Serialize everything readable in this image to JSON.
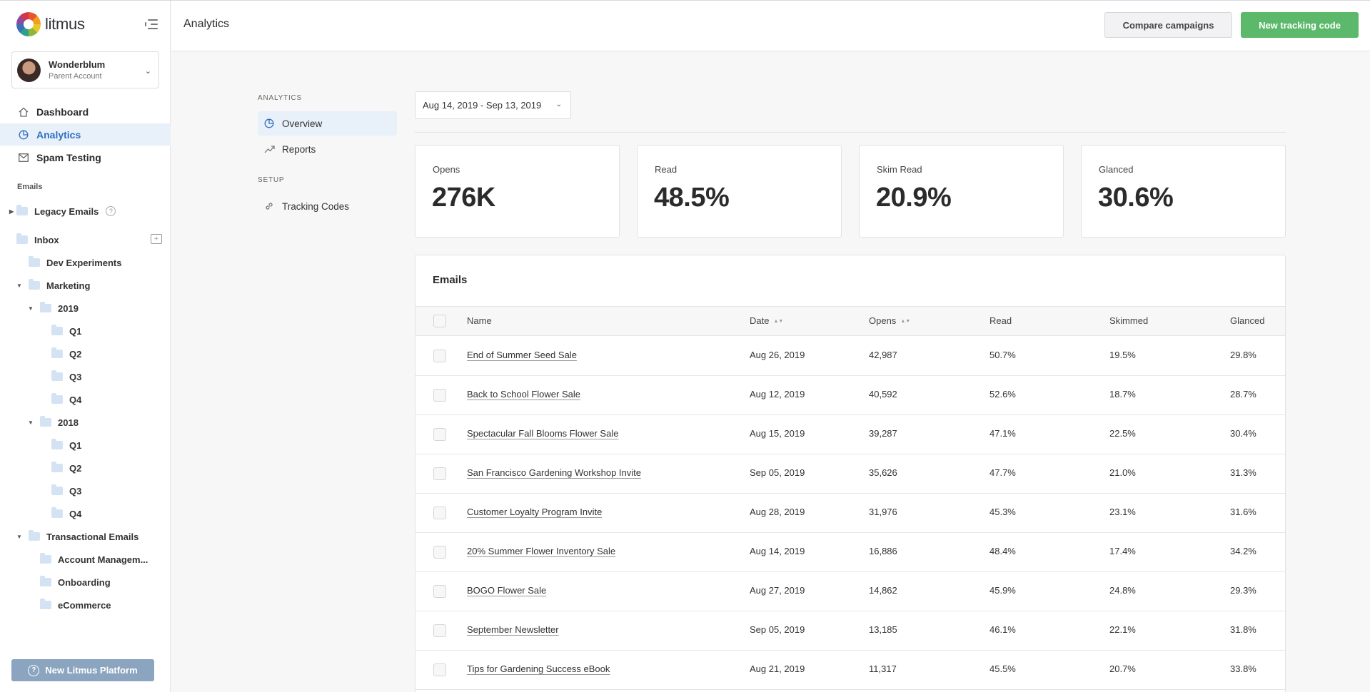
{
  "app": {
    "logo_text": "litmus",
    "page_title": "Analytics"
  },
  "account": {
    "name": "Wonderblum",
    "subtitle": "Parent Account"
  },
  "nav": [
    {
      "label": "Dashboard",
      "icon": "home-icon"
    },
    {
      "label": "Analytics",
      "icon": "pie-chart-icon",
      "active": true
    },
    {
      "label": "Spam Testing",
      "icon": "mail-icon"
    }
  ],
  "emails_label": "Emails",
  "tree": {
    "legacy": "Legacy Emails",
    "inbox": "Inbox",
    "dev": "Dev Experiments",
    "marketing": "Marketing",
    "y2019": "2019",
    "y2018": "2018",
    "q1": "Q1",
    "q2": "Q2",
    "q3": "Q3",
    "q4": "Q4",
    "transactional": "Transactional Emails",
    "account_mgmt": "Account Managem...",
    "onboarding": "Onboarding",
    "ecommerce": "eCommerce"
  },
  "platform_button": "New Litmus Platform",
  "topbar": {
    "compare": "Compare campaigns",
    "new_code": "New tracking code"
  },
  "subnav": {
    "analytics_label": "ANALYTICS",
    "overview": "Overview",
    "reports": "Reports",
    "setup_label": "SETUP",
    "tracking": "Tracking Codes"
  },
  "date_range": "Aug 14, 2019 - Sep 13, 2019",
  "stats": [
    {
      "label": "Opens",
      "value": "276K"
    },
    {
      "label": "Read",
      "value": "48.5%"
    },
    {
      "label": "Skim Read",
      "value": "20.9%"
    },
    {
      "label": "Glanced",
      "value": "30.6%"
    }
  ],
  "table": {
    "title": "Emails",
    "columns": [
      "Name",
      "Date",
      "Opens",
      "Read",
      "Skimmed",
      "Glanced"
    ],
    "rows": [
      [
        "End of Summer Seed Sale",
        "Aug 26, 2019",
        "42,987",
        "50.7%",
        "19.5%",
        "29.8%"
      ],
      [
        "Back to School Flower Sale",
        "Aug 12, 2019",
        "40,592",
        "52.6%",
        "18.7%",
        "28.7%"
      ],
      [
        "Spectacular Fall Blooms Flower Sale",
        "Aug 15, 2019",
        "39,287",
        "47.1%",
        "22.5%",
        "30.4%"
      ],
      [
        "San Francisco Gardening Workshop Invite",
        "Sep 05, 2019",
        "35,626",
        "47.7%",
        "21.0%",
        "31.3%"
      ],
      [
        "Customer Loyalty Program Invite",
        "Aug 28, 2019",
        "31,976",
        "45.3%",
        "23.1%",
        "31.6%"
      ],
      [
        "20% Summer Flower Inventory Sale",
        "Aug 14, 2019",
        "16,886",
        "48.4%",
        "17.4%",
        "34.2%"
      ],
      [
        "BOGO Flower Sale",
        "Aug 27, 2019",
        "14,862",
        "45.9%",
        "24.8%",
        "29.3%"
      ],
      [
        "September Newsletter",
        "Sep 05, 2019",
        "13,185",
        "46.1%",
        "22.1%",
        "31.8%"
      ],
      [
        "Tips for Gardening Success eBook",
        "Aug 21, 2019",
        "11,317",
        "45.5%",
        "20.7%",
        "33.8%"
      ]
    ]
  }
}
